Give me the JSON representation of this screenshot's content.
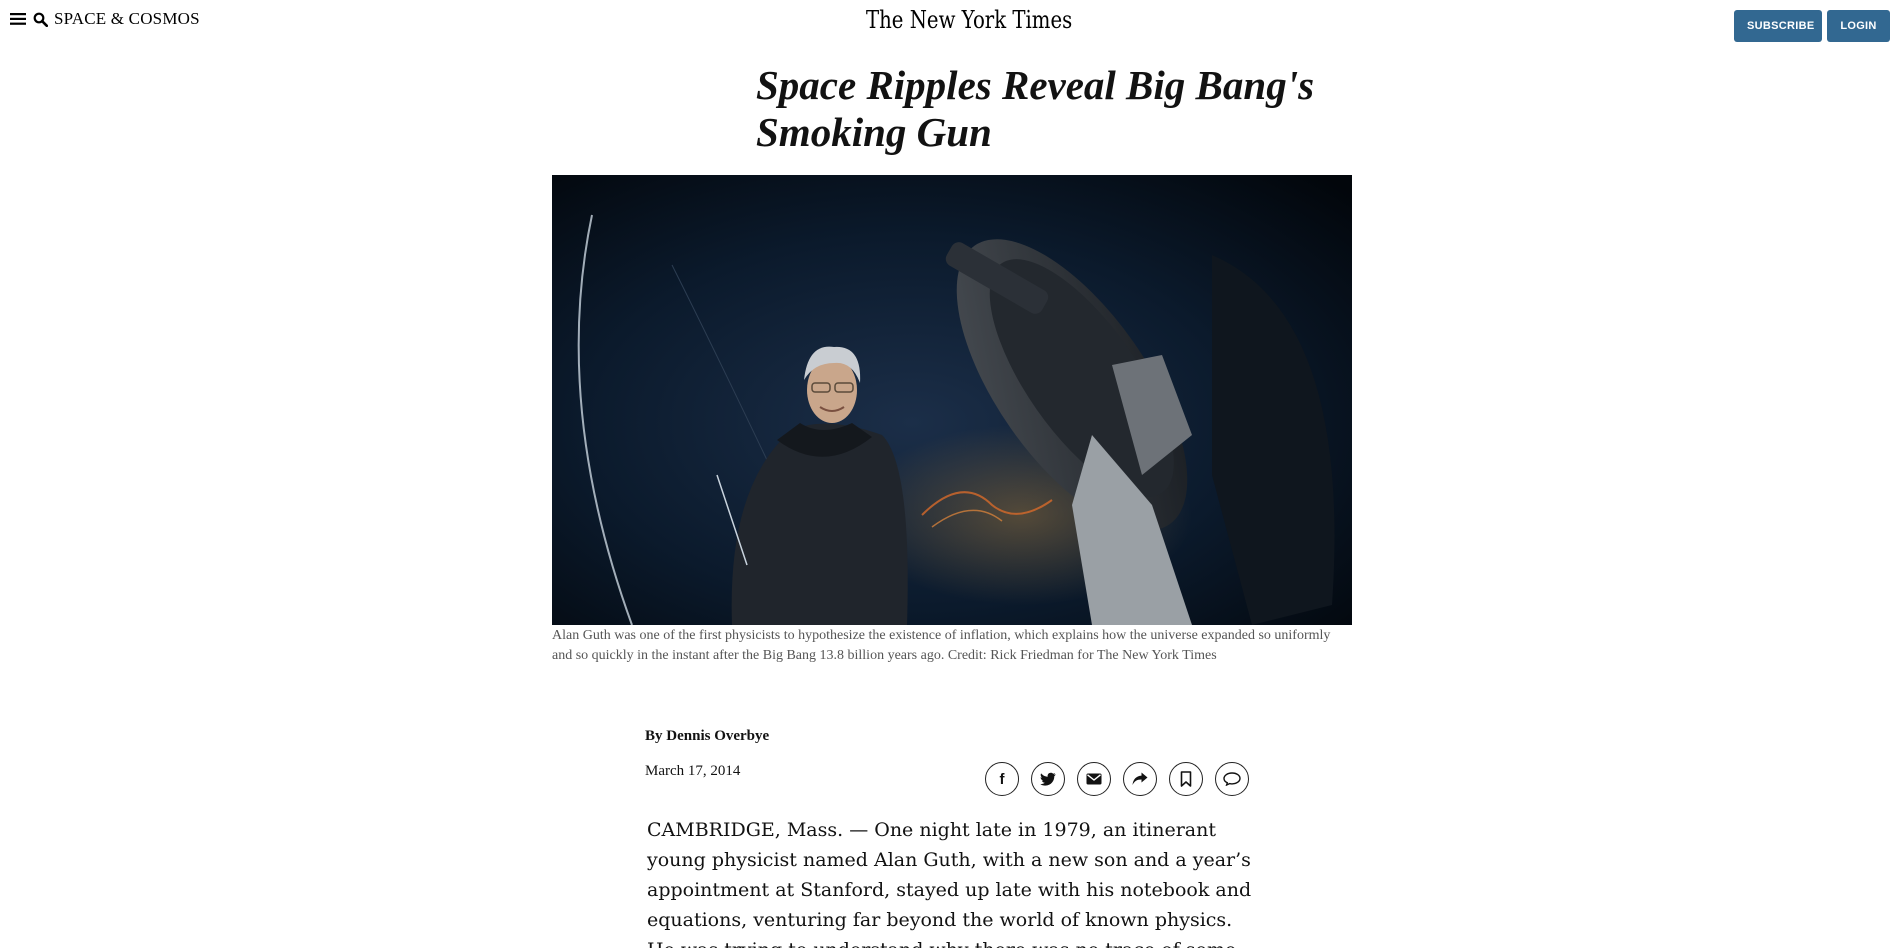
{
  "header": {
    "section_label": "SPACE & COSMOS",
    "logo_text": "The New York Times",
    "subscribe_label": "SUBSCRIBE",
    "login_label": "LOGIN"
  },
  "article": {
    "headline": "Space Ripples Reveal Big Bang's Smoking Gun",
    "image_caption": "Alan Guth was one of the first physicists to hypothesize the existence of inflation, which explains how the universe expanded so uniformly and so quickly in the instant after the Big Bang 13.8 billion years ago. Credit: Rick Friedman for The New York Times",
    "byline_prefix": "By",
    "author": "Dennis Overbye",
    "date": "March 17, 2014",
    "paragraphs": [
      "CAMBRIDGE, Mass. — One night late in 1979, an itinerant young physicist named Alan Guth, with a new son and a year’s appointment at Stanford, stayed up late with his notebook and equations, venturing far beyond the world of known physics.",
      "He was trying to understand why there was no trace of some exotic"
    ]
  },
  "share_icons": [
    "facebook-icon",
    "twitter-icon",
    "email-icon",
    "share-icon",
    "bookmark-icon",
    "comment-icon"
  ],
  "colors": {
    "button_blue": "#326891",
    "text": "#121212",
    "caption": "#555555",
    "photo_background": "#02070d"
  }
}
